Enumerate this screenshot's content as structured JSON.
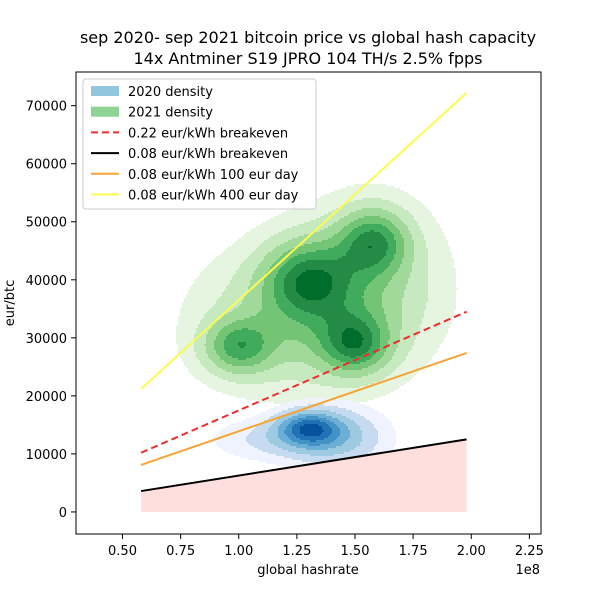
{
  "chart_data": {
    "type": "line",
    "title_lines": [
      "sep 2020- sep 2021 bitcoin price vs global hash capacity",
      "14x Antminer S19 JPRO 104 TH/s 2.5% fpps"
    ],
    "xlabel": "global hashrate",
    "ylabel": "eur/btc",
    "x_offset_label": "1e8",
    "xlim": [
      30000000.0,
      230000000.0
    ],
    "ylim": [
      -3800,
      75800
    ],
    "x_ticks": [
      50000000.0,
      75000000.0,
      100000000.0,
      125000000.0,
      150000000.0,
      175000000.0,
      200000000.0,
      225000000.0
    ],
    "x_tick_labels": [
      "0.50",
      "0.75",
      "1.00",
      "1.25",
      "1.50",
      "1.75",
      "2.00",
      "2.25"
    ],
    "y_ticks": [
      0,
      10000,
      20000,
      30000,
      40000,
      50000,
      60000,
      70000
    ],
    "y_tick_labels": [
      "0",
      "10000",
      "20000",
      "30000",
      "40000",
      "50000",
      "60000",
      "70000"
    ],
    "grid": false,
    "legend_position": "top-left",
    "legend": [
      {
        "label": "2020 density",
        "kind": "patch",
        "color": "#92c5de"
      },
      {
        "label": "2021 density",
        "kind": "patch",
        "color": "#8fd494"
      },
      {
        "label": "0.22 eur/kWh breakeven",
        "kind": "line",
        "color": "#ef2b2b",
        "dash": true
      },
      {
        "label": "0.08 eur/kWh breakeven",
        "kind": "line",
        "color": "#000000",
        "dash": false
      },
      {
        "label": "0.08 eur/kWh 100 eur day",
        "kind": "line",
        "color": "#f6a434",
        "dash": false
      },
      {
        "label": "0.08 eur/kWh 400 eur day",
        "kind": "line",
        "color": "#fbfb50",
        "dash": false
      }
    ],
    "series": [
      {
        "name": "0.22 eur/kWh breakeven",
        "x": [
          58000000.0,
          198000000.0
        ],
        "y": [
          10200,
          34500
        ]
      },
      {
        "name": "0.08 eur/kWh breakeven",
        "x": [
          58000000.0,
          198000000.0
        ],
        "y": [
          3600,
          12500
        ]
      },
      {
        "name": "0.08 eur/kWh 100 eur day",
        "x": [
          58000000.0,
          198000000.0
        ],
        "y": [
          8100,
          27400
        ]
      },
      {
        "name": "0.08 eur/kWh 400 eur day",
        "x": [
          58000000.0,
          198000000.0
        ],
        "y": [
          21200,
          72200
        ]
      }
    ],
    "shaded_region": {
      "color": "#ffdede",
      "x": [
        58000000.0,
        198000000.0
      ],
      "y_lower": [
        0,
        0
      ],
      "y_upper": [
        3600,
        12500
      ]
    },
    "density_2021": {
      "colors": [
        "#e5f5e0",
        "#c7e9c0",
        "#a1d99b",
        "#74c476",
        "#41ab5d",
        "#238b45",
        "#006d2c"
      ],
      "blobs": [
        {
          "cx": 130000000.0,
          "cy": 40000,
          "sx": 13000000.0,
          "sy": 4500,
          "w": 1.0
        },
        {
          "cx": 158000000.0,
          "cy": 46500,
          "sx": 10000000.0,
          "sy": 3800,
          "w": 1.0
        },
        {
          "cx": 150000000.0,
          "cy": 29000,
          "sx": 10000000.0,
          "sy": 3500,
          "w": 1.0
        },
        {
          "cx": 100000000.0,
          "cy": 28500,
          "sx": 10000000.0,
          "sy": 3200,
          "w": 0.9
        },
        {
          "cx": 125000000.0,
          "cy": 33000,
          "sx": 28000000.0,
          "sy": 8000,
          "w": 0.55
        },
        {
          "cx": 155000000.0,
          "cy": 40000,
          "sx": 22000000.0,
          "sy": 9000,
          "w": 0.45
        }
      ],
      "levels": [
        0.07,
        0.17,
        0.3,
        0.45,
        0.6,
        0.75,
        0.9
      ]
    },
    "density_2020": {
      "colors": [
        "#eff3ff",
        "#c6dbef",
        "#9ecae1",
        "#6baed6",
        "#4292c6",
        "#2171b5",
        "#08519c"
      ],
      "blobs": [
        {
          "cx": 130000000.0,
          "cy": 14500,
          "sx": 9000000.0,
          "sy": 2000,
          "w": 1.0
        },
        {
          "cx": 142000000.0,
          "cy": 13000,
          "sx": 14000000.0,
          "sy": 3500,
          "w": 0.5
        },
        {
          "cx": 120000000.0,
          "cy": 12500,
          "sx": 20000000.0,
          "sy": 2500,
          "w": 0.35
        }
      ],
      "levels": [
        0.07,
        0.17,
        0.3,
        0.45,
        0.6,
        0.75,
        0.9
      ]
    }
  }
}
